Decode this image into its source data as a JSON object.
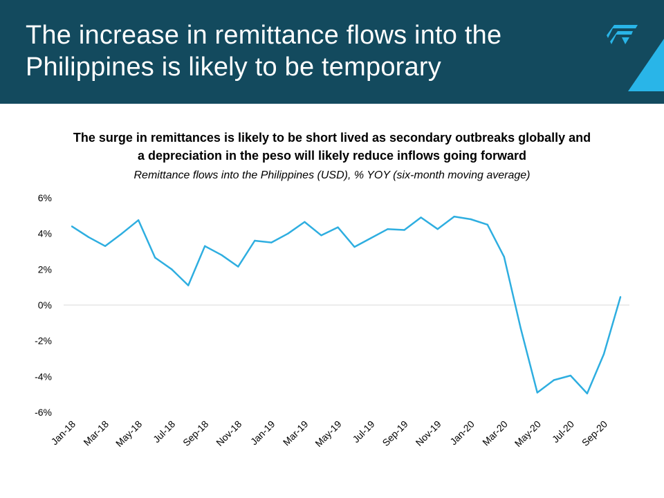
{
  "slide": {
    "title_line1": "The increase in remittance flows into the",
    "title_line2": "Philippines is likely to be temporary",
    "subtitle_line1": "The surge in remittances is likely to be short lived as secondary outbreaks globally and",
    "subtitle_line2": "a depreciation in the peso will likely reduce inflows going forward",
    "caption": "Remittance flows into the Philippines (USD), % YOY (six-month moving average)",
    "logo_icon": "brand-logo-icon",
    "colors": {
      "header": "#134a5e",
      "accent": "#29b5e8",
      "line": "#2eaee0",
      "gridline": "#d9d9d9"
    }
  },
  "chart_data": {
    "type": "line",
    "title": "Remittance flows into the Philippines (USD), % YOY (six-month moving average)",
    "ylim": [
      -6,
      6
    ],
    "yticks": [
      6,
      4,
      2,
      0,
      -2,
      -4,
      -6
    ],
    "ytick_labels": [
      "6%",
      "4%",
      "2%",
      "0%",
      "-2%",
      "-4%",
      "-6%"
    ],
    "grid": "zero line only",
    "x": [
      "Jan-18",
      "Feb-18",
      "Mar-18",
      "Apr-18",
      "May-18",
      "Jun-18",
      "Jul-18",
      "Aug-18",
      "Sep-18",
      "Oct-18",
      "Nov-18",
      "Dec-18",
      "Jan-19",
      "Feb-19",
      "Mar-19",
      "Apr-19",
      "May-19",
      "Jun-19",
      "Jul-19",
      "Aug-19",
      "Sep-19",
      "Oct-19",
      "Nov-19",
      "Dec-19",
      "Jan-20",
      "Feb-20",
      "Mar-20",
      "Apr-20",
      "May-20",
      "Jun-20",
      "Jul-20",
      "Aug-20",
      "Sep-20",
      "Oct-20"
    ],
    "xtick_labels": [
      "Jan-18",
      "Mar-18",
      "May-18",
      "Jul-18",
      "Sep-18",
      "Nov-18",
      "Jan-19",
      "Mar-19",
      "May-19",
      "Jul-19",
      "Sep-19",
      "Nov-19",
      "Jan-20",
      "Mar-20",
      "May-20",
      "Jul-20",
      "Sep-20"
    ],
    "values": [
      4.4,
      3.8,
      3.3,
      4.0,
      4.75,
      2.65,
      2.0,
      1.1,
      3.3,
      2.8,
      2.15,
      3.6,
      3.5,
      4.0,
      4.65,
      3.9,
      4.35,
      3.25,
      3.75,
      4.25,
      4.2,
      4.9,
      4.25,
      4.95,
      4.8,
      4.5,
      2.7,
      -1.3,
      -4.9,
      -4.2,
      -3.95,
      -4.95,
      -2.75,
      0.45
    ]
  }
}
